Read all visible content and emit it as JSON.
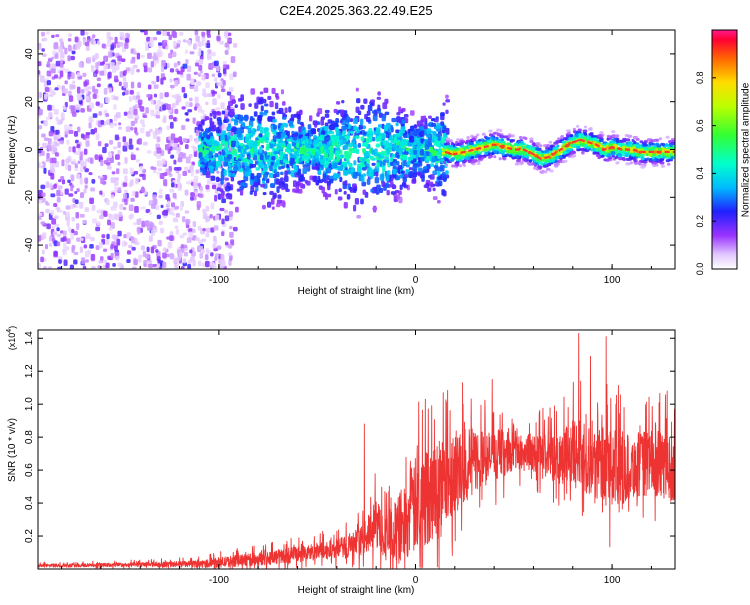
{
  "title": "C2E4.2025.363.22.49.E25",
  "chart_data": [
    {
      "type": "heatmap",
      "name": "spectrogram",
      "xlabel": "Height of straight line (km)",
      "ylabel": "Frequency (Hz)",
      "xlim": [
        -192,
        132
      ],
      "ylim": [
        -50,
        50
      ],
      "xticks": [
        -100,
        0,
        100
      ],
      "xtick_labels": [
        "-100",
        "0",
        "100"
      ],
      "yticks": [
        -40,
        -20,
        0,
        20,
        40
      ],
      "ytick_labels": [
        "-40",
        "-20",
        "0",
        "20",
        "40"
      ],
      "colorbar": {
        "label": "Normalized spectral amplitude",
        "range": [
          0.0,
          1.0
        ],
        "ticks": [
          0.0,
          0.2,
          0.4,
          0.6,
          0.8
        ],
        "tick_labels": [
          "0.0",
          "0.2",
          "0.4",
          "0.6",
          "0.8"
        ]
      },
      "ridge": {
        "x": [
          15,
          20,
          25,
          30,
          35,
          40,
          45,
          50,
          55,
          60,
          64,
          68,
          72,
          76,
          80,
          84,
          88,
          92,
          96,
          100,
          105,
          110,
          115,
          120,
          125,
          132
        ],
        "freq": [
          -1,
          -2,
          -1,
          0,
          1,
          2,
          1,
          0,
          0,
          -2,
          -4,
          -3,
          -1,
          1,
          3,
          4,
          3,
          2,
          0,
          1,
          0,
          0,
          -1,
          -1,
          -1,
          -1
        ]
      }
    },
    {
      "type": "line",
      "name": "snr",
      "xlabel": "Height of straight line (km)",
      "ylabel": "SNR (10 * v/v)",
      "y_scale_label": "(x10",
      "y_scale_exponent": "4",
      "y_scale_suffix": ")",
      "xlim": [
        -192,
        132
      ],
      "ylim": [
        0.0,
        1.45
      ],
      "xticks": [
        -100,
        0,
        100
      ],
      "xtick_labels": [
        "-100",
        "0",
        "100"
      ],
      "yticks": [
        0.2,
        0.4,
        0.6,
        0.8,
        1.0,
        1.2,
        1.4
      ],
      "ytick_labels": [
        "0.2",
        "0.4",
        "0.6",
        "0.8",
        "1.0",
        "1.2",
        "1.4"
      ],
      "color": "#ee3333",
      "envelope": {
        "x": [
          -192,
          -150,
          -110,
          -100,
          -80,
          -60,
          -40,
          -30,
          -25,
          -20,
          -15,
          -10,
          -5,
          0,
          5,
          10,
          15,
          20,
          25,
          30,
          40,
          50,
          60,
          70,
          80,
          90,
          100,
          110,
          120,
          132
        ],
        "mean": [
          0.02,
          0.025,
          0.03,
          0.04,
          0.06,
          0.09,
          0.12,
          0.15,
          0.2,
          0.28,
          0.2,
          0.22,
          0.3,
          0.38,
          0.42,
          0.5,
          0.55,
          0.6,
          0.62,
          0.66,
          0.68,
          0.72,
          0.7,
          0.68,
          0.7,
          0.66,
          0.6,
          0.62,
          0.65,
          0.6
        ],
        "spread": [
          0.01,
          0.012,
          0.02,
          0.03,
          0.04,
          0.05,
          0.06,
          0.08,
          0.1,
          0.15,
          0.15,
          0.2,
          0.25,
          0.3,
          0.3,
          0.3,
          0.28,
          0.25,
          0.22,
          0.2,
          0.15,
          0.12,
          0.12,
          0.15,
          0.2,
          0.22,
          0.25,
          0.2,
          0.2,
          0.2
        ]
      },
      "peaks": [
        {
          "x": 83,
          "y": 1.43
        },
        {
          "x": 97,
          "y": 1.41
        },
        {
          "x": 89,
          "y": 1.29
        },
        {
          "x": 39,
          "y": 1.15
        },
        {
          "x": 24,
          "y": 1.13
        },
        {
          "x": 5,
          "y": 1.03
        },
        {
          "x": -26,
          "y": 0.88
        },
        {
          "x": 128,
          "y": 1.08
        },
        {
          "x": 102,
          "y": 1.0
        }
      ]
    }
  ]
}
